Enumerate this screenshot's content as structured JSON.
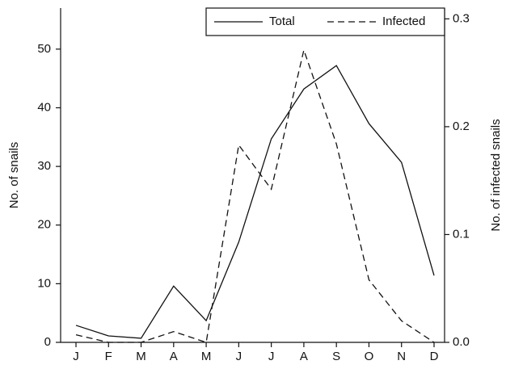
{
  "chart_data": {
    "type": "line",
    "y_label": "No. of snails",
    "y2_label": "No. of infected snails",
    "categories": [
      "J",
      "F",
      "M",
      "A",
      "M",
      "J",
      "J",
      "A",
      "S",
      "O",
      "N",
      "D"
    ],
    "series": [
      {
        "name": "Total",
        "color": "#111111",
        "dash": "solid",
        "values": [
          2.9,
          1.1,
          0.7,
          9.6,
          3.7,
          17.1,
          34.7,
          43.2,
          47.2,
          37.3,
          30.7,
          11.4
        ]
      },
      {
        "name": "Infected",
        "color": "#111111",
        "dash": "dashed",
        "axis": "y2",
        "values": [
          0.007,
          0,
          0,
          0.01,
          0,
          0.183,
          0.142,
          0.271,
          0.184,
          0.058,
          0.02,
          0
        ]
      }
    ],
    "ylim": [
      0,
      57
    ],
    "yticks": [
      0,
      10,
      20,
      30,
      40,
      50
    ],
    "y2lim": [
      0,
      0.31
    ],
    "y2ticks": [
      {
        "value": 0,
        "label": "0.0"
      },
      0.1,
      0.2,
      0.3
    ],
    "legend": "upper right"
  }
}
